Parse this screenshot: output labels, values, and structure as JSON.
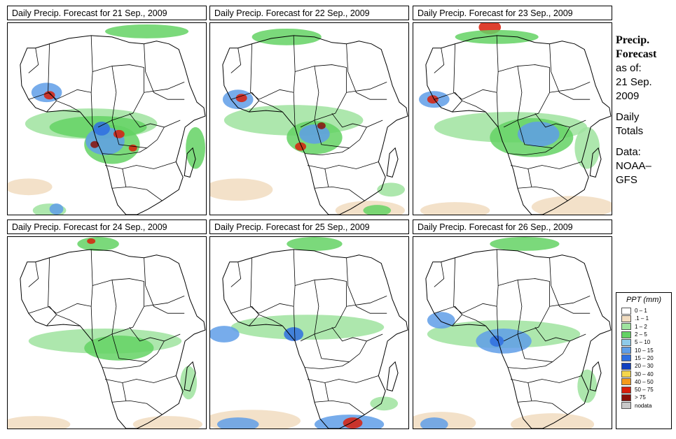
{
  "panels": [
    {
      "title": "Daily Precip. Forecast for  21 Sep., 2009",
      "rain": "heavy_central"
    },
    {
      "title": "Daily Precip. Forecast for  22 Sep., 2009",
      "rain": "moderate_central"
    },
    {
      "title": "Daily Precip. Forecast for  23 Sep., 2009",
      "rain": "east_central"
    },
    {
      "title": "Daily Precip. Forecast for  24 Sep., 2009",
      "rain": "light_sahel"
    },
    {
      "title": "Daily Precip. Forecast for  25 Sep., 2009",
      "rain": "west_and_south"
    },
    {
      "title": "Daily Precip. Forecast for  26 Sep., 2009",
      "rain": "central_and_south"
    }
  ],
  "info": {
    "title_line1": "Precip.",
    "title_line2": "Forecast",
    "asof_label": "as of:",
    "date_line1": "21 Sep.",
    "date_line2": "2009",
    "totals_line1": "Daily",
    "totals_line2": "Totals",
    "data_line1": "Data:",
    "data_line2": "NOAA–",
    "data_line3": "GFS"
  },
  "legend": {
    "title": "PPT (mm)",
    "items": [
      {
        "label": "0 – 1",
        "color": "#ffffff"
      },
      {
        "label": ".1 – 1",
        "color": "#f1dcc0"
      },
      {
        "label": "1 – 2",
        "color": "#9fe39f"
      },
      {
        "label": "2 – 5",
        "color": "#64d264"
      },
      {
        "label": "5 – 10",
        "color": "#8ecbea"
      },
      {
        "label": "10 – 15",
        "color": "#5f9ee8"
      },
      {
        "label": "15 – 20",
        "color": "#2f6fe0"
      },
      {
        "label": "20 – 30",
        "color": "#1040c0"
      },
      {
        "label": "30 – 40",
        "color": "#f5d64c"
      },
      {
        "label": "40 – 50",
        "color": "#f59a1c"
      },
      {
        "label": "50 – 75",
        "color": "#d81e0a"
      },
      {
        "label": "> 75",
        "color": "#8a1008"
      },
      {
        "label": "nodata",
        "color": "#c8c8c8"
      }
    ]
  }
}
